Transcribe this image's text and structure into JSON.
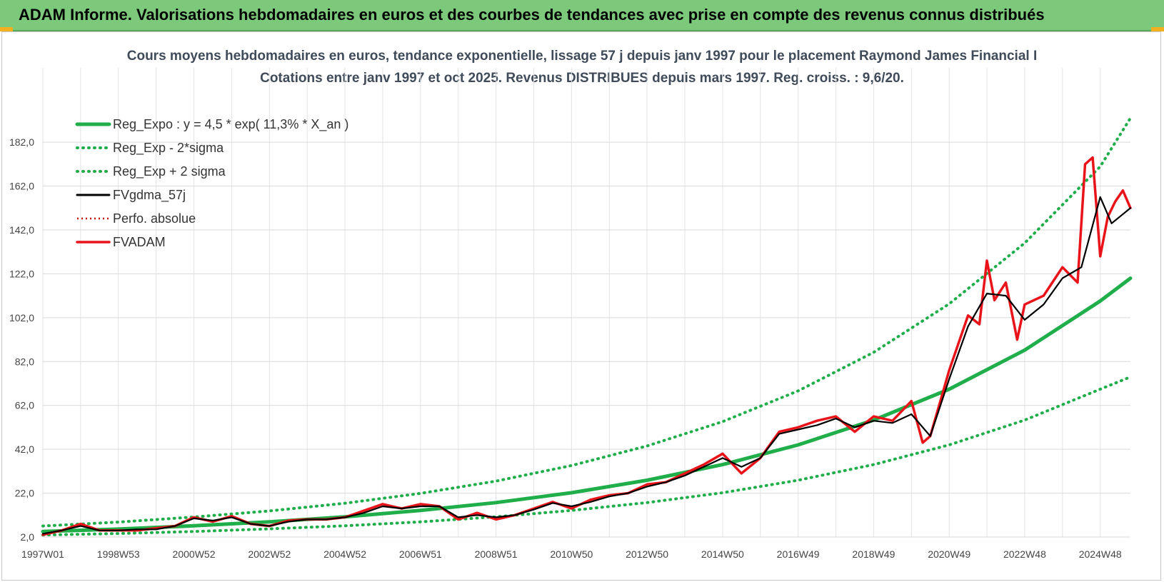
{
  "banner": {
    "title": "ADAM Informe. Valorisations hebdomadaires en euros et des courbes de tendances avec prise en compte des revenus connus distribués",
    "bg_color": "#7cc97c"
  },
  "chart_data": {
    "type": "line",
    "title": "Cours moyens hebdomadaires en euros, tendance exponentielle, lissage 57 j depuis janv 1997 pour le placement Raymond James Financial I",
    "subtitle": "Cotations entre janv 1997 et oct 2025. Revenus DISTRIBUES depuis mars 1997. Reg. croiss. : 9,6/20.",
    "xlabel": "",
    "ylabel": "",
    "ylim": [
      2,
      198
    ],
    "x_range_years": [
      1997.0,
      2025.8
    ],
    "y_ticks": [
      "2,0",
      "22,0",
      "42,0",
      "62,0",
      "82,0",
      "102,0",
      "122,0",
      "142,0",
      "162,0",
      "182,0"
    ],
    "x_tick_labels": [
      "1997W01",
      "1998W53",
      "2000W52",
      "2002W52",
      "2004W52",
      "2006W51",
      "2008W51",
      "2010W50",
      "2012W50",
      "2014W50",
      "2016W49",
      "2018W49",
      "2020W49",
      "2022W48",
      "2024W48"
    ],
    "x_tick_years": [
      1997.0,
      1999.0,
      2001.0,
      2003.0,
      2005.0,
      2007.0,
      2009.0,
      2011.0,
      2013.0,
      2015.0,
      2017.0,
      2019.0,
      2021.0,
      2023.0,
      2025.0
    ],
    "grid": true,
    "legend_position": "top-left",
    "series": [
      {
        "name": "Reg_Expo : y = 4,5 * exp( 11,3% *  X_an )",
        "color": "#1fae4a",
        "style": "solid",
        "x": [
          1997.0,
          1999.0,
          2001.0,
          2003.0,
          2005.0,
          2007.0,
          2009.0,
          2011.0,
          2013.0,
          2015.0,
          2017.0,
          2019.0,
          2021.0,
          2023.0,
          2025.0,
          2025.8
        ],
        "y": [
          4.5,
          5.6,
          7.1,
          8.9,
          11.2,
          14.1,
          17.7,
          22.2,
          27.9,
          35.0,
          44.0,
          55.3,
          69.4,
          87.2,
          109.6,
          120.0
        ]
      },
      {
        "name": "Reg_Exp - 2*sigma",
        "color": "#1fae4a",
        "style": "dotted",
        "x": [
          1997.0,
          1999.0,
          2001.0,
          2003.0,
          2005.0,
          2007.0,
          2009.0,
          2011.0,
          2013.0,
          2015.0,
          2017.0,
          2019.0,
          2021.0,
          2023.0,
          2025.0,
          2025.8
        ],
        "y": [
          2.9,
          3.6,
          4.5,
          5.7,
          7.1,
          8.9,
          11.2,
          14.1,
          17.7,
          22.2,
          27.9,
          35.0,
          44.0,
          55.3,
          69.4,
          75.0
        ]
      },
      {
        "name": "Reg_Exp + 2 sigma",
        "color": "#1fae4a",
        "style": "dotted",
        "x": [
          1997.0,
          1999.0,
          2001.0,
          2003.0,
          2005.0,
          2007.0,
          2009.0,
          2011.0,
          2013.0,
          2015.0,
          2017.0,
          2019.0,
          2021.0,
          2023.0,
          2025.0,
          2025.8
        ],
        "y": [
          7.0,
          8.8,
          11.1,
          13.9,
          17.4,
          21.9,
          27.5,
          34.6,
          43.5,
          54.6,
          68.6,
          86.2,
          108.3,
          136.0,
          170.9,
          193.0
        ]
      },
      {
        "name": "FVgdma_57j",
        "color": "#000000",
        "style": "solid",
        "x": [
          1997.0,
          1997.5,
          1998.0,
          1998.5,
          1999.0,
          1999.5,
          2000.0,
          2000.5,
          2001.0,
          2001.5,
          2002.0,
          2002.5,
          2003.0,
          2003.5,
          2004.0,
          2004.5,
          2005.0,
          2005.5,
          2006.0,
          2006.5,
          2007.0,
          2007.5,
          2008.0,
          2008.5,
          2009.0,
          2009.5,
          2010.0,
          2010.5,
          2011.0,
          2011.5,
          2012.0,
          2012.5,
          2013.0,
          2013.5,
          2014.0,
          2014.5,
          2015.0,
          2015.5,
          2016.0,
          2016.5,
          2017.0,
          2017.5,
          2018.0,
          2018.5,
          2019.0,
          2019.5,
          2020.0,
          2020.5,
          2021.0,
          2021.5,
          2022.0,
          2022.5,
          2023.0,
          2023.5,
          2024.0,
          2024.5,
          2025.0,
          2025.3,
          2025.8
        ],
        "y": [
          3.5,
          5.0,
          7.0,
          5.0,
          5.0,
          5.5,
          5.5,
          7.0,
          10.5,
          9.5,
          11.0,
          8.0,
          7.0,
          9.0,
          10.0,
          10.0,
          11.0,
          13.0,
          16.0,
          15.0,
          16.0,
          16.0,
          11.0,
          12.0,
          11.0,
          12.0,
          14.5,
          17.5,
          16.0,
          18.0,
          20.5,
          22.0,
          25.0,
          27.0,
          30.0,
          34.0,
          38.0,
          34.0,
          38.0,
          49.0,
          51.0,
          53.0,
          56.0,
          52.0,
          55.0,
          54.0,
          58.0,
          48.0,
          74.0,
          98.0,
          113.0,
          112.0,
          101.0,
          108.0,
          120.0,
          125.0,
          157.0,
          145.0,
          152.0
        ]
      },
      {
        "name": "Perfo. absolue",
        "color": "#c00000",
        "style": "dotted",
        "x": [],
        "y": []
      },
      {
        "name": "FVADAM",
        "color": "#e8141a",
        "style": "solid",
        "x": [
          1997.0,
          1997.5,
          1998.0,
          1998.5,
          1999.0,
          1999.5,
          2000.0,
          2000.5,
          2001.0,
          2001.5,
          2002.0,
          2002.5,
          2003.0,
          2003.5,
          2004.0,
          2004.5,
          2005.0,
          2005.5,
          2006.0,
          2006.5,
          2007.0,
          2007.5,
          2008.0,
          2008.5,
          2009.0,
          2009.5,
          2010.0,
          2010.5,
          2011.0,
          2011.5,
          2012.0,
          2012.5,
          2013.0,
          2013.5,
          2014.0,
          2014.5,
          2015.0,
          2015.5,
          2016.0,
          2016.5,
          2017.0,
          2017.5,
          2018.0,
          2018.5,
          2019.0,
          2019.5,
          2020.0,
          2020.3,
          2020.5,
          2021.0,
          2021.5,
          2021.8,
          2022.0,
          2022.2,
          2022.5,
          2022.8,
          2023.0,
          2023.5,
          2024.0,
          2024.4,
          2024.6,
          2024.8,
          2025.0,
          2025.2,
          2025.4,
          2025.6,
          2025.8
        ],
        "y": [
          3.0,
          5.0,
          8.0,
          5.0,
          5.0,
          5.0,
          6.0,
          7.0,
          11.0,
          9.0,
          11.5,
          8.0,
          7.0,
          9.5,
          10.0,
          10.0,
          11.0,
          14.0,
          17.0,
          15.0,
          17.0,
          16.0,
          10.0,
          13.0,
          10.0,
          12.0,
          15.0,
          18.0,
          15.0,
          19.0,
          21.0,
          22.0,
          26.0,
          27.0,
          31.0,
          35.0,
          40.0,
          31.0,
          38.0,
          50.0,
          52.0,
          55.0,
          57.0,
          50.0,
          57.0,
          55.0,
          64.0,
          45.0,
          48.0,
          78.0,
          103.0,
          99.0,
          128.0,
          110.0,
          118.0,
          92.0,
          108.0,
          112.0,
          125.0,
          118.0,
          172.0,
          175.0,
          130.0,
          148.0,
          155.0,
          160.0,
          152.0
        ]
      }
    ]
  }
}
